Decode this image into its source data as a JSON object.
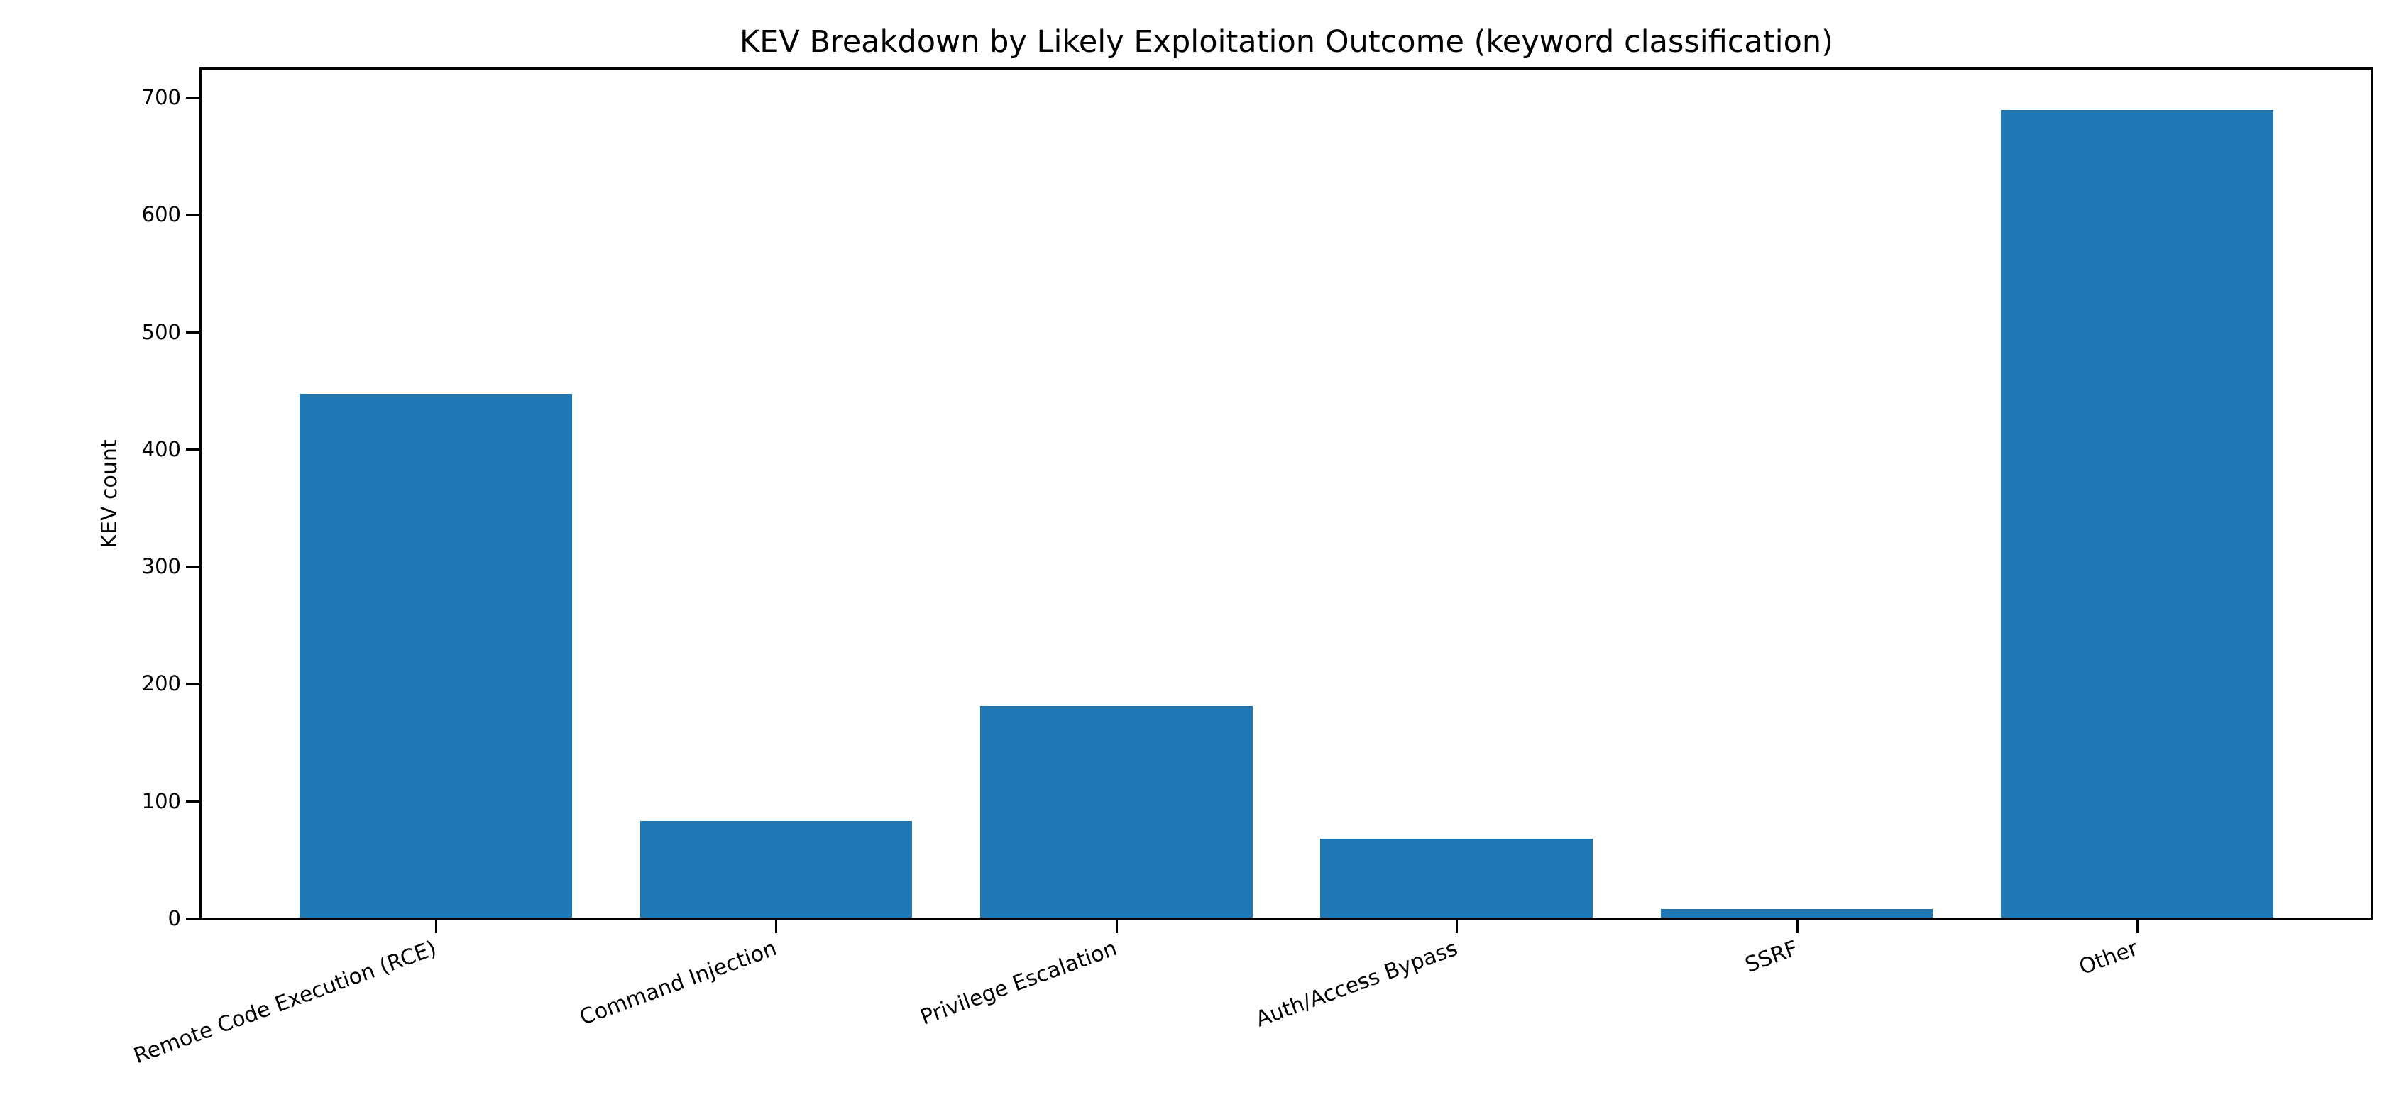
{
  "chart_data": {
    "type": "bar",
    "title": "KEV Breakdown by Likely Exploitation Outcome (keyword classification)",
    "xlabel": "",
    "ylabel": "KEV count",
    "categories": [
      "Remote Code Execution (RCE)",
      "Command Injection",
      "Privilege Escalation",
      "Auth/Access Bypass",
      "SSRF",
      "Other"
    ],
    "values": [
      447,
      83,
      181,
      68,
      8,
      689
    ],
    "ylim": [
      0,
      724
    ],
    "yticks": [
      "0",
      "100",
      "200",
      "300",
      "400",
      "500",
      "600",
      "700"
    ],
    "xtick_rotation": 20,
    "grid": false,
    "legend": null,
    "bar_color": "#1f77b4"
  },
  "title": "KEV Breakdown by Likely Exploitation Outcome (keyword classification)",
  "ylabel": "KEV count",
  "ytick_labels": [
    "0",
    "100",
    "200",
    "300",
    "400",
    "500",
    "600",
    "700"
  ],
  "xtick_labels": [
    "Remote Code Execution (RCE)",
    "Command Injection",
    "Privilege Escalation",
    "Auth/Access Bypass",
    "SSRF",
    "Other"
  ]
}
